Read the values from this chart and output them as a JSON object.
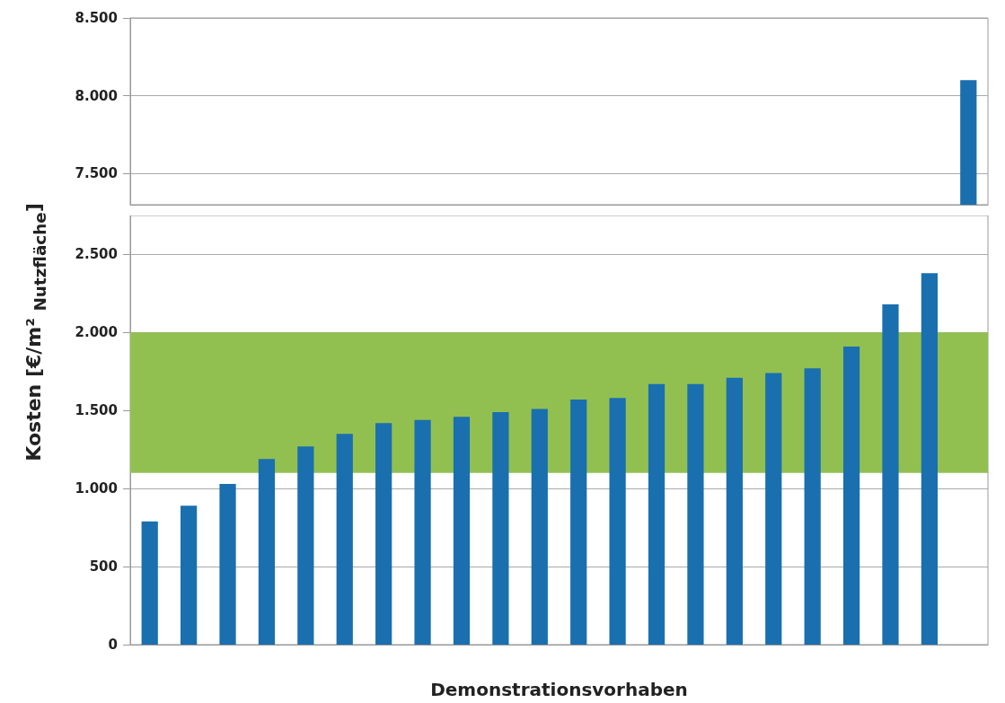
{
  "chart_data": [
    {
      "type": "bar",
      "categories": [
        null,
        null,
        null,
        null,
        null,
        null,
        null,
        null,
        null,
        null,
        null,
        null,
        null,
        null,
        null,
        null,
        null,
        null,
        null,
        null,
        null,
        null
      ],
      "series": [
        {
          "color": "#1a6faf",
          "values": [
            null,
            null,
            null,
            null,
            null,
            null,
            null,
            null,
            null,
            null,
            null,
            null,
            null,
            null,
            null,
            null,
            null,
            null,
            null,
            null,
            null,
            8100
          ]
        }
      ],
      "ylim": [
        7300,
        8500
      ],
      "yticks": [
        {
          "value": 7500,
          "label": "7.500"
        },
        {
          "value": 8000,
          "label": "8.000"
        },
        {
          "value": 8500,
          "label": "8.500"
        }
      ],
      "grid": "y",
      "tick_labels": "y"
    },
    {
      "type": "bar",
      "categories": [
        null,
        null,
        null,
        null,
        null,
        null,
        null,
        null,
        null,
        null,
        null,
        null,
        null,
        null,
        null,
        null,
        null,
        null,
        null,
        null,
        null,
        null
      ],
      "series": [
        {
          "color": "#1a6faf",
          "values": [
            790,
            890,
            1030,
            1190,
            1270,
            1350,
            1420,
            1440,
            1460,
            1490,
            1510,
            1570,
            1580,
            1670,
            1670,
            1710,
            1740,
            1770,
            1910,
            2180,
            2380,
            null
          ]
        }
      ],
      "ylim": [
        0,
        2750
      ],
      "yticks": [
        0,
        {
          "value": 500,
          "label": "500"
        },
        {
          "value": 1000,
          "label": "1.000"
        },
        {
          "value": 1500,
          "label": "1.500"
        },
        {
          "value": 2000,
          "label": "2.000"
        },
        {
          "value": 2500,
          "label": "2.500"
        }
      ],
      "grid": "y",
      "tick_labels": "y",
      "bands": [
        {
          "axis": "y",
          "from": 1100,
          "to": 2000,
          "color": "#92c050"
        }
      ],
      "xlabel": "Demonstrationsvorhaben",
      "ylabel": "Kosten [€/m² $_{Nutzfläche}$]"
    }
  ]
}
